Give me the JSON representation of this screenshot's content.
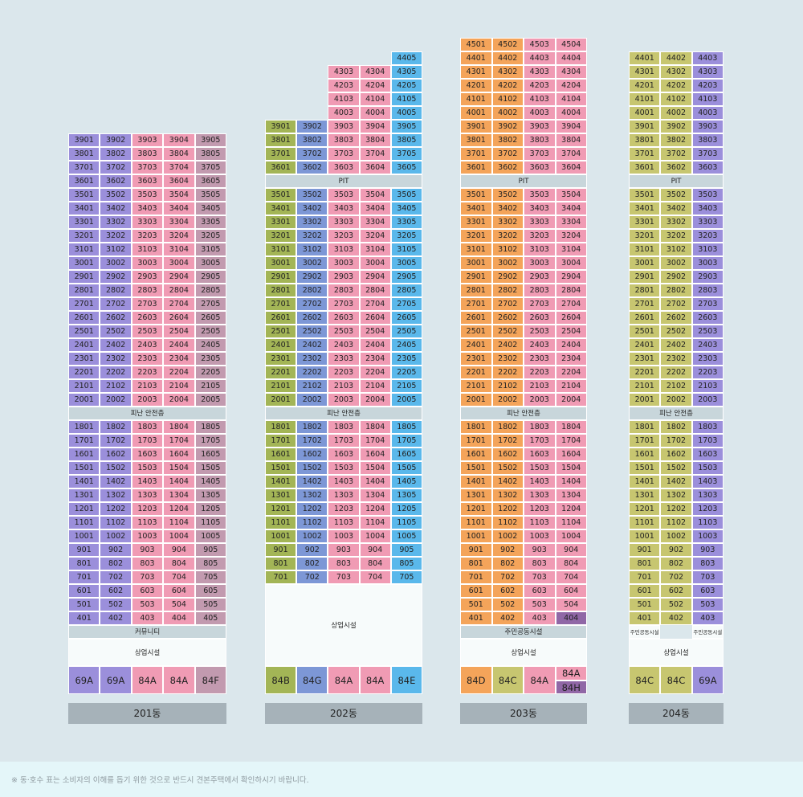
{
  "colors": {
    "purple": "#9b8fdb",
    "pink": "#f09bb4",
    "mauve": "#c29aaf",
    "green": "#a3b556",
    "steel": "#7d97d6",
    "sky": "#5ab8eb",
    "orange": "#f4a45a",
    "olive": "#c7c670",
    "darkpurple": "#9067a6"
  },
  "buildings": [
    {
      "label": "201동",
      "top_floor": 39,
      "units": [
        1,
        2,
        3,
        4,
        5
      ],
      "colors": [
        "purple",
        "purple",
        "pink",
        "pink",
        "mauve"
      ],
      "overrides": {},
      "skip_floors": [],
      "pit_after": null,
      "refuge_after": 20,
      "refuge_label": "피난 안전층",
      "low_floor": 4,
      "bottom_bands": [
        {
          "label": "커뮤니티",
          "style": "grey"
        },
        {
          "label": "상업시설",
          "style": "white"
        }
      ],
      "types": [
        {
          "label": "69A",
          "color": "purple"
        },
        {
          "label": "69A",
          "color": "purple"
        },
        {
          "label": "84A",
          "color": "pink"
        },
        {
          "label": "84A",
          "color": "pink"
        },
        {
          "label": "84F",
          "color": "mauve"
        }
      ]
    },
    {
      "label": "202동",
      "top_floor": 44,
      "units": [
        1,
        2,
        3,
        4,
        5
      ],
      "colors": [
        "green",
        "steel",
        "pink",
        "pink",
        "sky"
      ],
      "overrides": {
        "44": [
          5
        ],
        "43": [
          3,
          4,
          5
        ],
        "42": [
          3,
          4,
          5
        ],
        "41": [
          3,
          4,
          5
        ],
        "40": [
          3,
          4,
          5
        ]
      },
      "skip_floors": [],
      "pit_after": 36,
      "pit_label": "PIT",
      "refuge_after": 20,
      "refuge_label": "피난 안전층",
      "low_floor": 7,
      "bottom_bands": [
        {
          "label": "상업시설",
          "style": "white"
        }
      ],
      "types": [
        {
          "label": "84B",
          "color": "green"
        },
        {
          "label": "84G",
          "color": "steel"
        },
        {
          "label": "84A",
          "color": "pink"
        },
        {
          "label": "84A",
          "color": "pink"
        },
        {
          "label": "84E",
          "color": "sky"
        }
      ]
    },
    {
      "label": "203동",
      "top_floor": 45,
      "units": [
        1,
        2,
        3,
        4
      ],
      "colors": [
        "orange",
        "orange",
        "pink",
        "pink"
      ],
      "overrides": {},
      "special_cells": {
        "404": "darkpurple"
      },
      "skip_floors": [],
      "pit_after": 36,
      "pit_label": "PIT",
      "refuge_after": 20,
      "refuge_label": "피난 안전층",
      "low_floor": 4,
      "bottom_bands": [
        {
          "label": "주민공동시설",
          "style": "grey"
        },
        {
          "label": "상업시설",
          "style": "white"
        }
      ],
      "types": [
        {
          "label": "84D",
          "color": "orange"
        },
        {
          "label": "84C",
          "color": "olive"
        },
        {
          "label": "84A",
          "color": "pink"
        },
        {
          "label": "84A",
          "color": "pink"
        },
        {
          "label": "84H",
          "color": "darkpurple"
        }
      ]
    },
    {
      "label": "204동",
      "top_floor": 44,
      "units": [
        1,
        2,
        3
      ],
      "colors": [
        "olive",
        "olive",
        "purple"
      ],
      "overrides": {},
      "skip_floors": [],
      "pit_after": 36,
      "pit_label": "PIT",
      "refuge_after": 20,
      "refuge_label": "피난 안전층",
      "low_floor": 4,
      "small_facility": "주민공동시설",
      "bottom_bands": [
        {
          "label": "상업시설",
          "style": "white"
        }
      ],
      "types": [
        {
          "label": "84C",
          "color": "olive"
        },
        {
          "label": "84C",
          "color": "olive"
        },
        {
          "label": "69A",
          "color": "purple"
        }
      ]
    }
  ],
  "footnote": "※ 동·호수 표는 소비자의 이해를 돕기 위한 것으로 반드시 견본주택에서 확인하시기 바랍니다."
}
